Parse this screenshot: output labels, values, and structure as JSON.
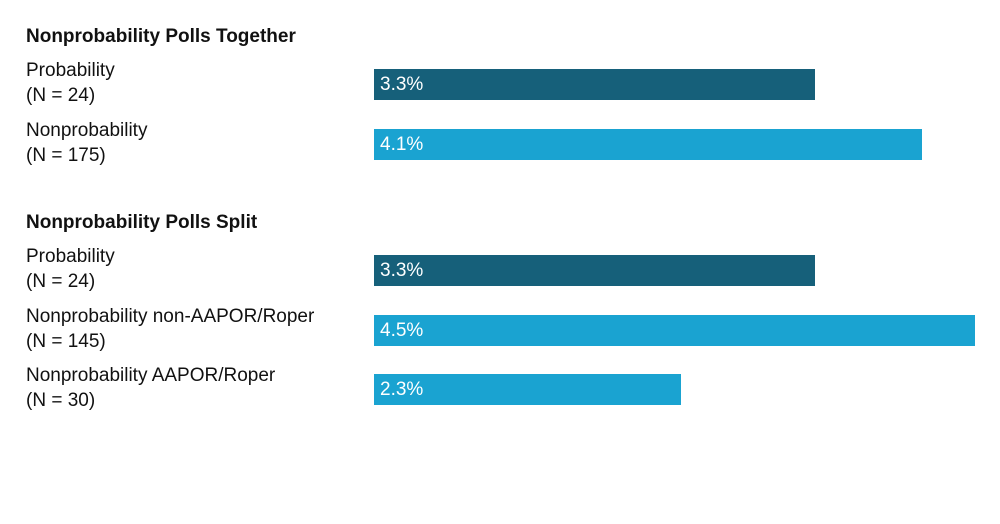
{
  "chart_data": {
    "type": "bar",
    "orientation": "horizontal",
    "title": "",
    "xlabel": "",
    "ylabel": "",
    "xlim": [
      0,
      4.5
    ],
    "grid": false,
    "value_suffix": "%",
    "colors": {
      "probability": "#16607a",
      "nonprobability": "#1aa3d1"
    },
    "groups": [
      {
        "title": "Nonprobability Polls Together",
        "rows": [
          {
            "label": "Probability",
            "n_label": "(N = 24)",
            "value": 3.3,
            "value_label": "3.3%",
            "kind": "probability"
          },
          {
            "label": "Nonprobability",
            "n_label": "(N = 175)",
            "value": 4.1,
            "value_label": "4.1%",
            "kind": "nonprobability"
          }
        ]
      },
      {
        "title": "Nonprobability Polls Split",
        "rows": [
          {
            "label": "Probability",
            "n_label": "(N = 24)",
            "value": 3.3,
            "value_label": "3.3%",
            "kind": "probability"
          },
          {
            "label": "Nonprobability non-AAPOR/Roper",
            "n_label": "(N = 145)",
            "value": 4.5,
            "value_label": "4.5%",
            "kind": "nonprobability"
          },
          {
            "label": "Nonprobability AAPOR/Roper",
            "n_label": "(N = 30)",
            "value": 2.3,
            "value_label": "2.3%",
            "kind": "nonprobability"
          }
        ]
      }
    ]
  }
}
